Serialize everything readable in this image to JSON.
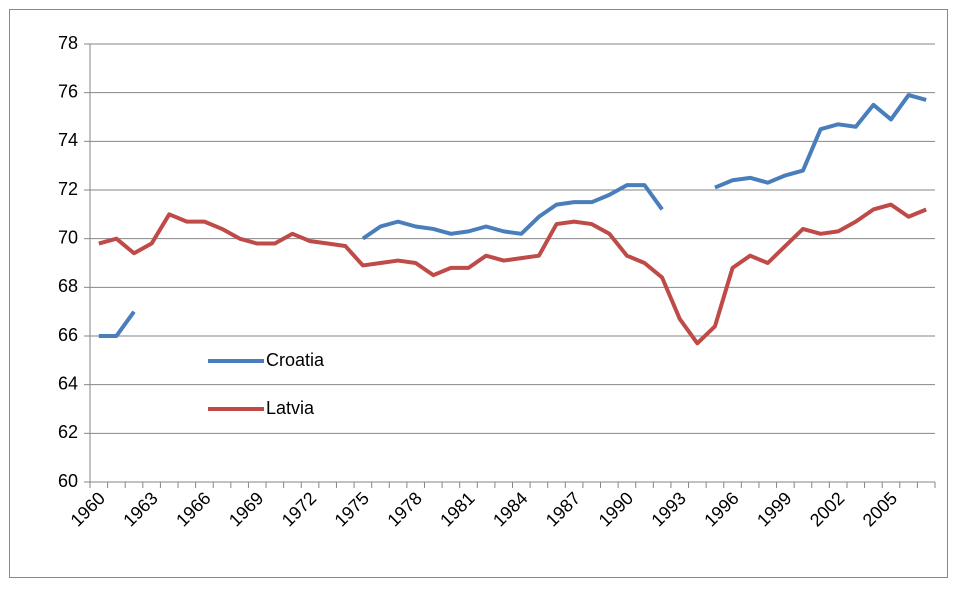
{
  "chart_data": {
    "type": "line",
    "categories": [
      "1960",
      null,
      null,
      "1963",
      null,
      null,
      "1966",
      null,
      null,
      "1969",
      null,
      null,
      "1972",
      null,
      null,
      "1975",
      null,
      null,
      "1978",
      null,
      null,
      "1981",
      null,
      null,
      "1984",
      null,
      null,
      "1987",
      null,
      null,
      "1990",
      null,
      null,
      "1993",
      null,
      null,
      "1996",
      null,
      null,
      "1999",
      null,
      null,
      "2002",
      null,
      null,
      "2005",
      null,
      null
    ],
    "series": [
      {
        "name": "Croatia",
        "color": "#4a7ebb",
        "values": [
          66.0,
          66.0,
          67.0,
          null,
          null,
          null,
          null,
          null,
          null,
          null,
          null,
          null,
          null,
          null,
          null,
          70.0,
          70.5,
          70.7,
          70.5,
          70.4,
          70.2,
          70.3,
          70.5,
          70.3,
          70.2,
          70.9,
          71.4,
          71.5,
          71.5,
          71.8,
          72.2,
          72.2,
          71.2,
          null,
          null,
          72.1,
          72.4,
          72.5,
          72.3,
          72.6,
          72.8,
          74.5,
          74.7,
          74.6,
          75.5,
          74.9,
          75.9,
          75.7
        ]
      },
      {
        "name": "Latvia",
        "color": "#be4b48",
        "values": [
          69.8,
          70.0,
          69.4,
          69.8,
          71.0,
          70.7,
          70.7,
          70.4,
          70.0,
          69.8,
          69.8,
          70.2,
          69.9,
          69.8,
          69.7,
          68.9,
          69.0,
          69.1,
          69.0,
          68.5,
          68.8,
          68.8,
          69.3,
          69.1,
          69.2,
          69.3,
          70.6,
          70.7,
          70.6,
          70.2,
          69.3,
          69.0,
          68.4,
          66.7,
          65.7,
          66.4,
          68.8,
          69.3,
          69.0,
          69.7,
          70.4,
          70.2,
          70.3,
          70.7,
          71.2,
          71.4,
          70.9,
          71.2
        ]
      }
    ],
    "ylim": [
      60,
      78
    ],
    "yticks": [
      60,
      62,
      64,
      66,
      68,
      70,
      72,
      74,
      76,
      78
    ],
    "grid": true,
    "legend": "lower left"
  }
}
